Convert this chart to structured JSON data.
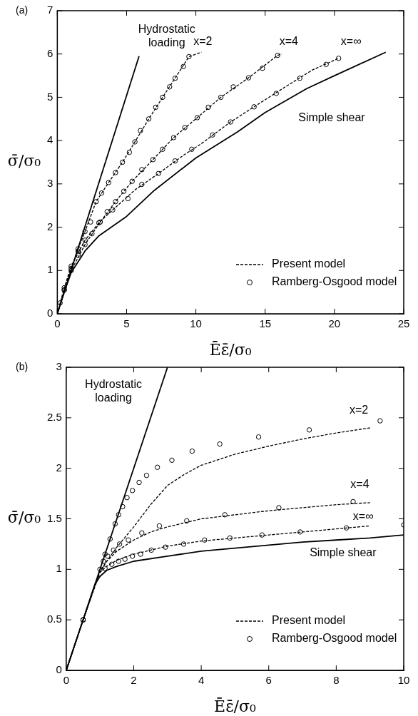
{
  "chart_data": [
    {
      "type": "line",
      "title": "(a)",
      "xlabel": "Ēε̄/σ₀",
      "ylabel": "σ̄/σ₀",
      "xlim": [
        0,
        25
      ],
      "ylim": [
        0,
        7
      ],
      "xticks": [
        0,
        5,
        10,
        15,
        20,
        25
      ],
      "yticks": [
        0,
        1,
        2,
        3,
        4,
        5,
        6,
        7
      ],
      "legend": "bottom right",
      "annotations": [
        "Hydrostatic\nloading",
        "x=2",
        "x=4",
        "x=∞",
        "Simple shear"
      ],
      "series": [
        {
          "type": "line",
          "color": "#000000",
          "line_style": "solid",
          "marker": "none",
          "x": [
            0,
            5.9
          ],
          "values": [
            0,
            5.95
          ]
        },
        {
          "type": "line",
          "color": "#000000",
          "line_style": "solid",
          "marker": "none",
          "x": [
            0,
            0.5,
            1,
            2,
            3,
            5,
            7,
            10,
            13,
            15,
            18,
            20,
            23.7
          ],
          "values": [
            0,
            0.5,
            0.95,
            1.45,
            1.8,
            2.25,
            2.85,
            3.6,
            4.2,
            4.65,
            5.2,
            5.5,
            6.04
          ]
        },
        {
          "type": "line",
          "name": "Present model",
          "color": "#000000",
          "line_style": "dashed",
          "marker": "none",
          "x": [
            0,
            0.5,
            1,
            1.5,
            2,
            2.8,
            3.7,
            4.7,
            5.6,
            6.6,
            7.6,
            8.5,
            9.5,
            10.4
          ],
          "values": [
            0,
            0.55,
            1.05,
            1.5,
            1.9,
            2.59,
            3.03,
            3.5,
            3.97,
            4.5,
            5.0,
            5.44,
            5.94,
            6.04
          ]
        },
        {
          "type": "line",
          "color": "#000000",
          "line_style": "dashed",
          "marker": "none",
          "x": [
            0,
            0.5,
            1,
            2,
            3.1,
            4.2,
            5.4,
            6.9,
            8.4,
            10.1,
            11.8,
            13.8,
            15.9,
            16.2
          ],
          "values": [
            0,
            0.55,
            1.0,
            1.6,
            2.12,
            2.59,
            3.06,
            3.56,
            4.07,
            4.53,
            5.0,
            5.45,
            5.97,
            6.0
          ]
        },
        {
          "type": "line",
          "color": "#000000",
          "line_style": "dashed",
          "marker": "none",
          "x": [
            0,
            0.5,
            1,
            2,
            3,
            4,
            5.6,
            7.3,
            9.1,
            10.4,
            12.5,
            14.2,
            16.6,
            18.4,
            20.3
          ],
          "values": [
            0,
            0.6,
            1.1,
            1.7,
            2.1,
            2.4,
            2.86,
            3.24,
            3.66,
            3.93,
            4.43,
            4.78,
            5.27,
            5.63,
            5.9
          ]
        },
        {
          "type": "scatter",
          "name": "Ramberg-Osgood model",
          "color": "#000000",
          "marker": "circle",
          "x": [
            0.5,
            1,
            1.5,
            2,
            2.4,
            2.8,
            3.2,
            3.7,
            4.2,
            4.7,
            5.2,
            5.6,
            6.0,
            6.6,
            7.1,
            7.6,
            8.1,
            8.5,
            9.1,
            9.5
          ],
          "values": [
            0.55,
            1.05,
            1.5,
            1.9,
            2.12,
            2.59,
            2.79,
            3.03,
            3.26,
            3.5,
            3.73,
            3.97,
            4.23,
            4.5,
            4.77,
            5.0,
            5.24,
            5.44,
            5.71,
            5.94
          ]
        },
        {
          "type": "scatter",
          "color": "#000000",
          "marker": "circle",
          "x": [
            0.5,
            1,
            1.5,
            2,
            2.5,
            3.1,
            3.6,
            4.2,
            4.8,
            5.4,
            6.1,
            6.9,
            7.6,
            8.4,
            9.2,
            10.1,
            10.9,
            11.8,
            12.7,
            13.8,
            14.8,
            15.9
          ],
          "values": [
            0.55,
            1.0,
            1.35,
            1.6,
            1.85,
            2.12,
            2.36,
            2.59,
            2.83,
            3.06,
            3.33,
            3.56,
            3.8,
            4.07,
            4.3,
            4.53,
            4.77,
            5.0,
            5.24,
            5.45,
            5.67,
            5.97
          ]
        },
        {
          "type": "scatter",
          "color": "#000000",
          "marker": "circle",
          "x": [
            0.2,
            0.5,
            1,
            1.5,
            2,
            3,
            4,
            5.1,
            6.1,
            7.3,
            8.5,
            9.7,
            11.2,
            12.5,
            14.2,
            15.8,
            17.5,
            19.4,
            20.3
          ],
          "values": [
            0.25,
            0.6,
            1.1,
            1.45,
            1.7,
            2.1,
            2.4,
            2.66,
            2.99,
            3.24,
            3.53,
            3.8,
            4.13,
            4.43,
            4.78,
            5.09,
            5.44,
            5.76,
            5.9
          ]
        }
      ]
    },
    {
      "type": "line",
      "title": "(b)",
      "xlabel": "Ēε̄/σ₀",
      "ylabel": "σ̄/σ₀",
      "xlim": [
        0,
        10
      ],
      "ylim": [
        0,
        3
      ],
      "xticks": [
        0,
        2,
        4,
        6,
        8,
        10
      ],
      "yticks": [
        0,
        0.5,
        1,
        1.5,
        2,
        2.5,
        3
      ],
      "legend": "bottom right",
      "annotations": [
        "Hydrostatic\nloading",
        "x=2",
        "x=4",
        "x=∞",
        "Simple shear"
      ],
      "series": [
        {
          "type": "line",
          "color": "#000000",
          "line_style": "solid",
          "marker": "none",
          "x": [
            0,
            3
          ],
          "values": [
            0,
            3
          ]
        },
        {
          "type": "line",
          "color": "#000000",
          "line_style": "solid",
          "marker": "none",
          "x": [
            0,
            0.85,
            1,
            1.2,
            1.5,
            2,
            3,
            4,
            5,
            6,
            7,
            8,
            9,
            10
          ],
          "values": [
            0,
            0.85,
            0.93,
            0.99,
            1.03,
            1.08,
            1.13,
            1.18,
            1.21,
            1.24,
            1.27,
            1.29,
            1.31,
            1.34
          ]
        },
        {
          "type": "line",
          "name": "Present model",
          "color": "#000000",
          "line_style": "dashed",
          "marker": "none",
          "x": [
            0,
            0.5,
            1,
            1.2,
            1.5,
            2,
            2.5,
            3,
            3.5,
            4,
            5,
            6,
            7,
            8,
            9
          ],
          "values": [
            0,
            0.5,
            0.98,
            1.08,
            1.22,
            1.42,
            1.64,
            1.83,
            1.94,
            2.03,
            2.14,
            2.22,
            2.29,
            2.35,
            2.4
          ]
        },
        {
          "type": "line",
          "color": "#000000",
          "line_style": "dashed",
          "marker": "none",
          "x": [
            0,
            0.5,
            1,
            1.2,
            1.5,
            2,
            2.5,
            3,
            4,
            5,
            6,
            7,
            8,
            9
          ],
          "values": [
            0,
            0.5,
            0.98,
            1.08,
            1.18,
            1.29,
            1.37,
            1.42,
            1.5,
            1.54,
            1.58,
            1.61,
            1.64,
            1.66
          ]
        },
        {
          "type": "line",
          "color": "#000000",
          "line_style": "dashed",
          "marker": "none",
          "x": [
            0,
            0.5,
            1,
            1.2,
            1.5,
            2,
            3,
            4,
            5,
            6,
            7,
            8,
            9
          ],
          "values": [
            0,
            0.5,
            0.97,
            1.03,
            1.09,
            1.15,
            1.23,
            1.28,
            1.31,
            1.34,
            1.37,
            1.4,
            1.43
          ]
        },
        {
          "type": "scatter",
          "name": "Ramberg-Osgood model",
          "color": "#000000",
          "marker": "circle",
          "x": [
            0.5,
            1,
            1.15,
            1.3,
            1.45,
            1.55,
            1.67,
            1.8,
            1.96,
            2.16,
            2.38,
            2.7,
            3.13,
            3.73,
            4.55,
            5.7,
            7.2,
            9.3
          ],
          "values": [
            0.5,
            1.0,
            1.15,
            1.3,
            1.45,
            1.54,
            1.62,
            1.71,
            1.78,
            1.86,
            1.93,
            2.01,
            2.08,
            2.17,
            2.24,
            2.31,
            2.38,
            2.47
          ]
        },
        {
          "type": "scatter",
          "color": "#000000",
          "marker": "circle",
          "x": [
            0.5,
            1.1,
            1.23,
            1.4,
            1.58,
            1.84,
            2.24,
            2.76,
            3.57,
            4.7,
            6.3,
            8.5
          ],
          "values": [
            0.5,
            1.08,
            1.13,
            1.19,
            1.25,
            1.29,
            1.36,
            1.43,
            1.48,
            1.54,
            1.61,
            1.67
          ]
        },
        {
          "type": "scatter",
          "color": "#000000",
          "marker": "circle",
          "x": [
            0.5,
            1.15,
            1.35,
            1.55,
            1.74,
            1.96,
            2.2,
            2.52,
            2.94,
            3.48,
            4.1,
            4.85,
            5.8,
            6.93,
            8.3,
            10
          ],
          "values": [
            0.5,
            1.01,
            1.05,
            1.08,
            1.1,
            1.13,
            1.15,
            1.19,
            1.22,
            1.25,
            1.29,
            1.31,
            1.34,
            1.37,
            1.41,
            1.44
          ]
        }
      ]
    }
  ]
}
